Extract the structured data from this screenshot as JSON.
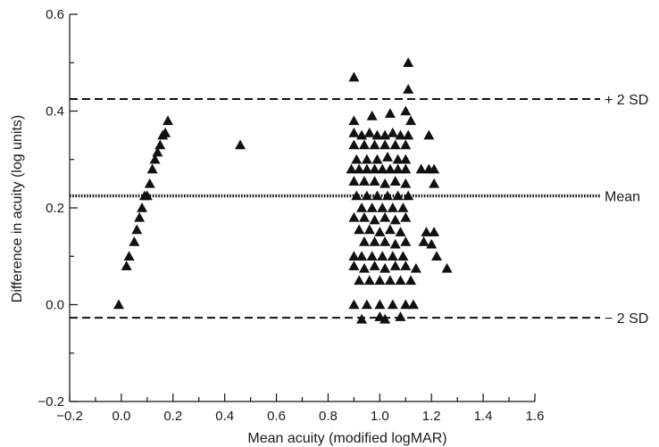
{
  "chart_data": {
    "type": "scatter",
    "title": "",
    "xlabel": "Mean acuity (modified logMAR)",
    "ylabel": "Difference in acuity (log units)",
    "xlim": [
      -0.2,
      1.6
    ],
    "ylim": [
      -0.2,
      0.6
    ],
    "x_ticks": [
      "−0.2",
      "0.0",
      "0.2",
      "0.4",
      "0.6",
      "0.8",
      "1.0",
      "1.2",
      "1.4",
      "1.6"
    ],
    "x_tick_values": [
      -0.2,
      0.0,
      0.2,
      0.4,
      0.6,
      0.8,
      1.0,
      1.2,
      1.4,
      1.6
    ],
    "y_ticks": [
      "−0.2",
      "0.0",
      "0.2",
      "0.4",
      "0.6"
    ],
    "y_tick_values": [
      -0.2,
      0.0,
      0.2,
      0.4,
      0.6
    ],
    "grid": false,
    "marker": "filled-triangle",
    "colors": {
      "points": "#111111",
      "lines": "#111111",
      "text": "#1a1a1a"
    },
    "reference_lines": [
      {
        "label": "+ 2 SD",
        "y": 0.425,
        "style": "dashed"
      },
      {
        "label": "Mean",
        "y": 0.225,
        "style": "dotted"
      },
      {
        "label": "− 2 SD",
        "y": -0.027,
        "style": "dashed"
      }
    ],
    "points": [
      {
        "x": -0.01,
        "y": 0.0
      },
      {
        "x": 0.02,
        "y": 0.08
      },
      {
        "x": 0.03,
        "y": 0.1
      },
      {
        "x": 0.05,
        "y": 0.13
      },
      {
        "x": 0.06,
        "y": 0.155
      },
      {
        "x": 0.07,
        "y": 0.18
      },
      {
        "x": 0.08,
        "y": 0.2
      },
      {
        "x": 0.09,
        "y": 0.225
      },
      {
        "x": 0.1,
        "y": 0.225
      },
      {
        "x": 0.11,
        "y": 0.25
      },
      {
        "x": 0.12,
        "y": 0.28
      },
      {
        "x": 0.13,
        "y": 0.3
      },
      {
        "x": 0.14,
        "y": 0.315
      },
      {
        "x": 0.15,
        "y": 0.33
      },
      {
        "x": 0.16,
        "y": 0.35
      },
      {
        "x": 0.17,
        "y": 0.355
      },
      {
        "x": 0.18,
        "y": 0.38
      },
      {
        "x": 0.46,
        "y": 0.33
      },
      {
        "x": 0.9,
        "y": 0.47
      },
      {
        "x": 1.11,
        "y": 0.5
      },
      {
        "x": 1.11,
        "y": 0.445
      },
      {
        "x": 0.9,
        "y": 0.38
      },
      {
        "x": 0.97,
        "y": 0.39
      },
      {
        "x": 1.04,
        "y": 0.395
      },
      {
        "x": 1.1,
        "y": 0.4
      },
      {
        "x": 1.12,
        "y": 0.38
      },
      {
        "x": 0.9,
        "y": 0.355
      },
      {
        "x": 0.93,
        "y": 0.35
      },
      {
        "x": 0.96,
        "y": 0.355
      },
      {
        "x": 0.99,
        "y": 0.35
      },
      {
        "x": 1.02,
        "y": 0.35
      },
      {
        "x": 1.05,
        "y": 0.355
      },
      {
        "x": 1.08,
        "y": 0.35
      },
      {
        "x": 1.11,
        "y": 0.35
      },
      {
        "x": 1.19,
        "y": 0.35
      },
      {
        "x": 0.9,
        "y": 0.33
      },
      {
        "x": 0.94,
        "y": 0.33
      },
      {
        "x": 0.98,
        "y": 0.33
      },
      {
        "x": 1.02,
        "y": 0.33
      },
      {
        "x": 1.06,
        "y": 0.33
      },
      {
        "x": 1.1,
        "y": 0.33
      },
      {
        "x": 0.91,
        "y": 0.3
      },
      {
        "x": 0.95,
        "y": 0.3
      },
      {
        "x": 0.99,
        "y": 0.3
      },
      {
        "x": 1.03,
        "y": 0.305
      },
      {
        "x": 1.07,
        "y": 0.3
      },
      {
        "x": 1.1,
        "y": 0.3
      },
      {
        "x": 0.89,
        "y": 0.28
      },
      {
        "x": 0.92,
        "y": 0.28
      },
      {
        "x": 0.95,
        "y": 0.28
      },
      {
        "x": 0.98,
        "y": 0.28
      },
      {
        "x": 1.01,
        "y": 0.28
      },
      {
        "x": 1.04,
        "y": 0.28
      },
      {
        "x": 1.07,
        "y": 0.28
      },
      {
        "x": 1.1,
        "y": 0.28
      },
      {
        "x": 1.16,
        "y": 0.28
      },
      {
        "x": 1.19,
        "y": 0.28
      },
      {
        "x": 1.21,
        "y": 0.28
      },
      {
        "x": 0.9,
        "y": 0.255
      },
      {
        "x": 0.94,
        "y": 0.255
      },
      {
        "x": 0.98,
        "y": 0.255
      },
      {
        "x": 1.02,
        "y": 0.25
      },
      {
        "x": 1.06,
        "y": 0.255
      },
      {
        "x": 1.1,
        "y": 0.25
      },
      {
        "x": 1.21,
        "y": 0.25
      },
      {
        "x": 0.91,
        "y": 0.225
      },
      {
        "x": 0.95,
        "y": 0.225
      },
      {
        "x": 0.99,
        "y": 0.225
      },
      {
        "x": 1.03,
        "y": 0.225
      },
      {
        "x": 1.07,
        "y": 0.225
      },
      {
        "x": 1.11,
        "y": 0.225
      },
      {
        "x": 0.93,
        "y": 0.2
      },
      {
        "x": 0.97,
        "y": 0.2
      },
      {
        "x": 1.01,
        "y": 0.2
      },
      {
        "x": 1.05,
        "y": 0.2
      },
      {
        "x": 1.09,
        "y": 0.2
      },
      {
        "x": 0.9,
        "y": 0.18
      },
      {
        "x": 0.94,
        "y": 0.18
      },
      {
        "x": 0.98,
        "y": 0.175
      },
      {
        "x": 1.02,
        "y": 0.18
      },
      {
        "x": 1.06,
        "y": 0.175
      },
      {
        "x": 1.1,
        "y": 0.18
      },
      {
        "x": 0.92,
        "y": 0.155
      },
      {
        "x": 0.96,
        "y": 0.155
      },
      {
        "x": 1.0,
        "y": 0.15
      },
      {
        "x": 1.04,
        "y": 0.155
      },
      {
        "x": 1.08,
        "y": 0.15
      },
      {
        "x": 1.18,
        "y": 0.15
      },
      {
        "x": 1.21,
        "y": 0.15
      },
      {
        "x": 0.94,
        "y": 0.13
      },
      {
        "x": 0.98,
        "y": 0.13
      },
      {
        "x": 1.02,
        "y": 0.13
      },
      {
        "x": 1.06,
        "y": 0.125
      },
      {
        "x": 1.1,
        "y": 0.13
      },
      {
        "x": 1.17,
        "y": 0.13
      },
      {
        "x": 1.2,
        "y": 0.125
      },
      {
        "x": 0.9,
        "y": 0.1
      },
      {
        "x": 0.93,
        "y": 0.1
      },
      {
        "x": 0.97,
        "y": 0.1
      },
      {
        "x": 1.01,
        "y": 0.1
      },
      {
        "x": 1.05,
        "y": 0.1
      },
      {
        "x": 1.09,
        "y": 0.1
      },
      {
        "x": 1.22,
        "y": 0.1
      },
      {
        "x": 0.9,
        "y": 0.08
      },
      {
        "x": 0.94,
        "y": 0.075
      },
      {
        "x": 0.98,
        "y": 0.08
      },
      {
        "x": 1.02,
        "y": 0.075
      },
      {
        "x": 1.06,
        "y": 0.08
      },
      {
        "x": 1.1,
        "y": 0.08
      },
      {
        "x": 1.14,
        "y": 0.075
      },
      {
        "x": 1.26,
        "y": 0.075
      },
      {
        "x": 0.92,
        "y": 0.05
      },
      {
        "x": 0.96,
        "y": 0.05
      },
      {
        "x": 1.0,
        "y": 0.05
      },
      {
        "x": 1.04,
        "y": 0.05
      },
      {
        "x": 1.08,
        "y": 0.05
      },
      {
        "x": 1.12,
        "y": 0.05
      },
      {
        "x": 0.9,
        "y": 0.0
      },
      {
        "x": 0.95,
        "y": 0.0
      },
      {
        "x": 1.0,
        "y": 0.0
      },
      {
        "x": 1.05,
        "y": 0.0
      },
      {
        "x": 1.1,
        "y": 0.0
      },
      {
        "x": 1.13,
        "y": 0.0
      },
      {
        "x": 0.93,
        "y": -0.03
      },
      {
        "x": 1.0,
        "y": -0.025
      },
      {
        "x": 1.02,
        "y": -0.03
      },
      {
        "x": 1.08,
        "y": -0.025
      }
    ]
  }
}
